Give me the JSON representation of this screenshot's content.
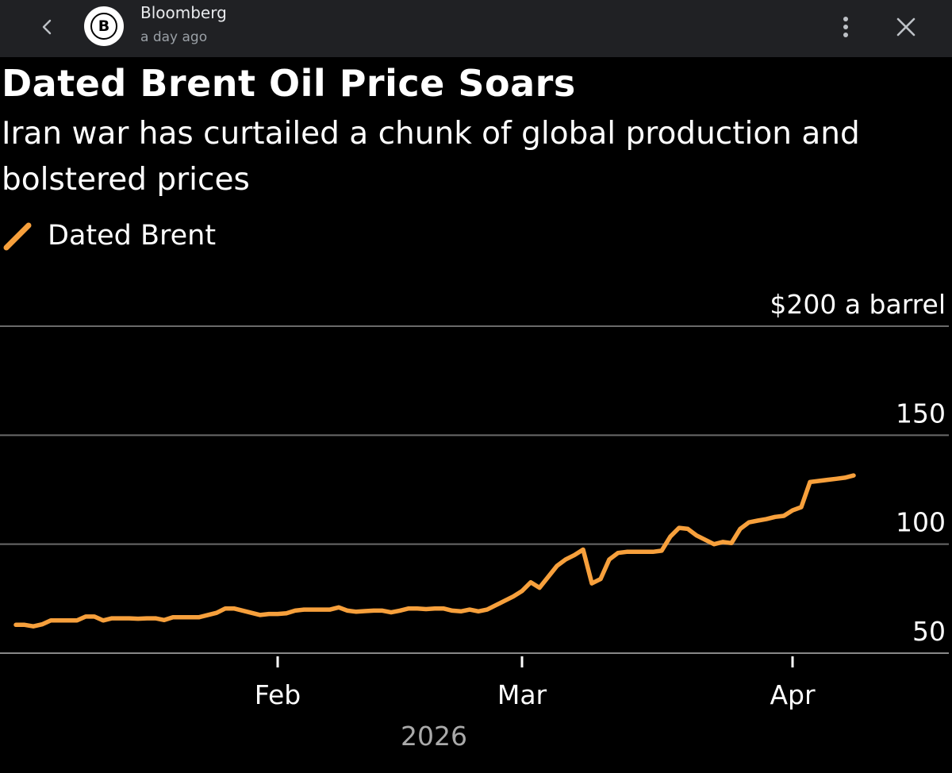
{
  "header": {
    "source_name": "Bloomberg",
    "source_initial": "B",
    "timestamp": "a day ago",
    "icons": [
      "chevron-left-icon",
      "bloomberg-logo",
      "more-vert-icon",
      "close-icon"
    ]
  },
  "chart_data": {
    "type": "line",
    "title": "Dated Brent Oil Price Soars",
    "subtitle": "Iran war has curtailed a chunk of global production and bolstered prices",
    "legend": [
      "Dated Brent"
    ],
    "ylabel": "$200 a barrel",
    "ylim": [
      50,
      200
    ],
    "yticks": [
      {
        "value": 200,
        "label": "$200 a barrel"
      },
      {
        "value": 150,
        "label": "150"
      },
      {
        "value": 100,
        "label": "100"
      },
      {
        "value": 50,
        "label": "50"
      }
    ],
    "x_axis_year": "2026",
    "x_range_days": [
      1,
      103
    ],
    "xticks": [
      {
        "label": "Feb",
        "day": 32
      },
      {
        "label": "Mar",
        "day": 60
      },
      {
        "label": "Apr",
        "day": 91
      }
    ],
    "line_color": "#f7a03c",
    "series": [
      {
        "name": "Dated Brent",
        "days": [
          2,
          3,
          4,
          5,
          6,
          7,
          8,
          9,
          10,
          11,
          12,
          13,
          14,
          15,
          16,
          17,
          18,
          19,
          20,
          21,
          22,
          23,
          24,
          25,
          26,
          27,
          28,
          29,
          30,
          31,
          32,
          33,
          34,
          35,
          36,
          37,
          38,
          39,
          40,
          41,
          42,
          43,
          44,
          45,
          46,
          47,
          48,
          49,
          50,
          51,
          52,
          53,
          54,
          55,
          56,
          57,
          58,
          59,
          60,
          61,
          62,
          63,
          64,
          65,
          66,
          67,
          68,
          69,
          70,
          71,
          72,
          73,
          74,
          75,
          76,
          77,
          78,
          79,
          80,
          81,
          82,
          83,
          84,
          85,
          86,
          87,
          88,
          89,
          90,
          91,
          92,
          93,
          94,
          95,
          96,
          97,
          98
        ],
        "values": [
          63.0,
          63.0,
          62.3,
          63.2,
          65.0,
          65.0,
          65.0,
          65.0,
          66.8,
          66.8,
          65.0,
          66.0,
          66.0,
          66.0,
          65.8,
          66.0,
          66.0,
          65.2,
          66.5,
          66.5,
          66.5,
          66.5,
          67.5,
          68.5,
          70.5,
          70.5,
          69.5,
          68.5,
          67.5,
          68.0,
          68.0,
          68.3,
          69.5,
          70.0,
          70.0,
          70.0,
          70.0,
          71.0,
          69.5,
          69.0,
          69.3,
          69.5,
          69.5,
          68.7,
          69.5,
          70.5,
          70.5,
          70.2,
          70.5,
          70.5,
          69.5,
          69.2,
          70.0,
          69.2,
          70.0,
          72.0,
          74.0,
          76.0,
          78.5,
          82.5,
          80.0,
          85.0,
          90.0,
          93.0,
          95.0,
          97.5,
          82.0,
          84.0,
          93.0,
          96.0,
          96.5,
          96.5,
          96.5,
          96.5,
          97.0,
          103.5,
          107.5,
          107.0,
          104.0,
          102.0,
          100.0,
          101.0,
          100.5,
          107.0,
          110.0,
          110.8,
          111.5,
          112.5,
          113.0,
          115.5,
          117.0,
          128.5,
          129.0,
          129.5,
          130.0,
          130.5,
          131.5
        ]
      }
    ]
  }
}
